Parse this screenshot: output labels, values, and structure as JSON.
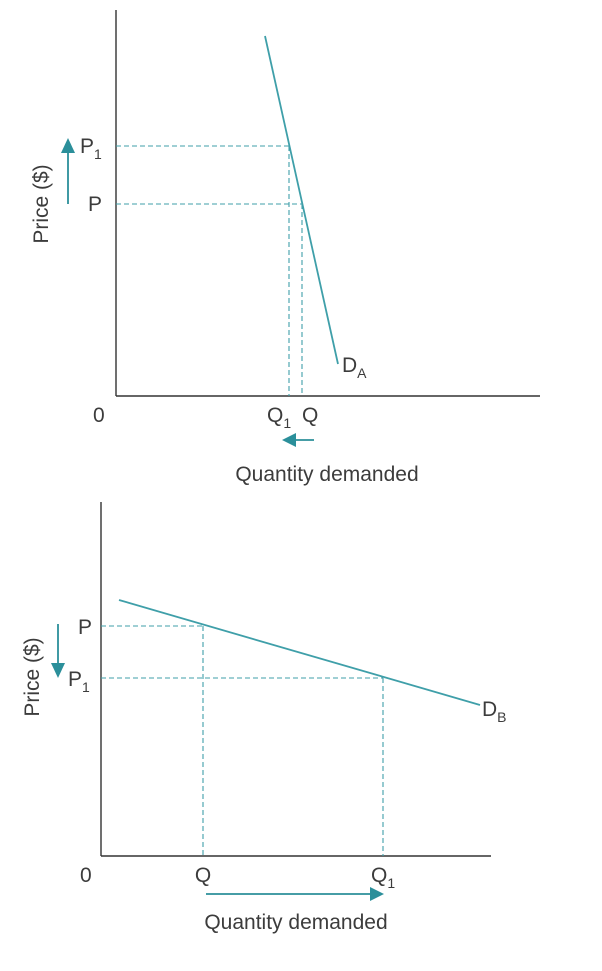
{
  "colors": {
    "curve": "#3f9fa9",
    "arrow": "#2b8f9a",
    "axis": "#333333",
    "text": "#3c3c3c"
  },
  "panel_a": {
    "y_axis_title": "Price ($)",
    "x_axis_title": "Quantity demanded",
    "origin_label": "0",
    "price_high": {
      "main": "P",
      "sub": "1"
    },
    "price_base": {
      "main": "P"
    },
    "qty_new": {
      "main": "Q",
      "sub": "1"
    },
    "qty_base": {
      "main": "Q"
    },
    "curve_label": {
      "main": "D",
      "sub": "A"
    },
    "price_arrow": "up-arrow",
    "quantity_arrow": "left-arrow"
  },
  "panel_b": {
    "y_axis_title": "Price ($)",
    "x_axis_title": "Quantity demanded",
    "origin_label": "0",
    "price_base": {
      "main": "P"
    },
    "price_low": {
      "main": "P",
      "sub": "1"
    },
    "qty_base": {
      "main": "Q"
    },
    "qty_new": {
      "main": "Q",
      "sub": "1"
    },
    "curve_label": {
      "main": "D",
      "sub": "B"
    },
    "price_arrow": "down-arrow",
    "quantity_arrow": "right-arrow"
  }
}
